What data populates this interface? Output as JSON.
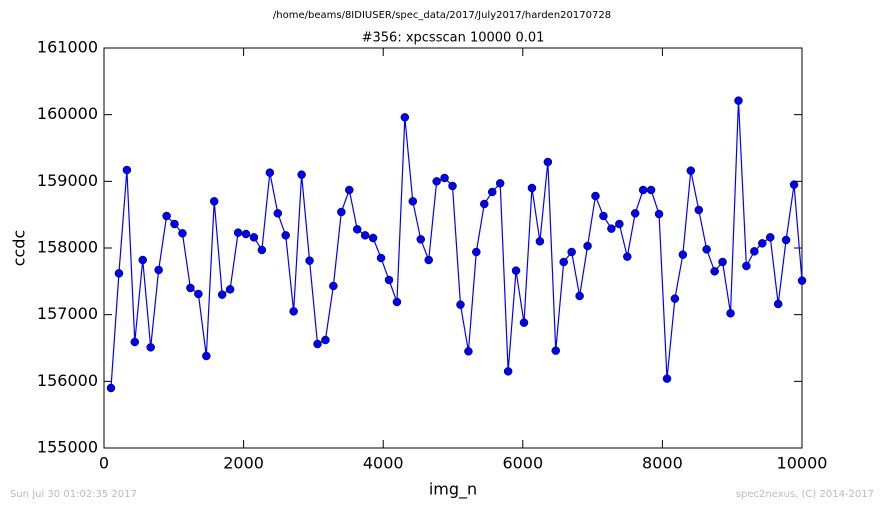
{
  "chart_data": {
    "type": "line",
    "suptitle": "/home/beams/8IDIUSER/spec_data/2017/July2017/harden20170728",
    "title": "#356: xpcsscan 10000 0.01",
    "xlabel": "img_n",
    "ylabel": "ccdc",
    "footer_left": "Sun Jul 30 01:02:35 2017",
    "footer_right": "spec2nexus, (C) 2014-2017",
    "x": [
      100,
      214,
      328,
      441,
      555,
      669,
      783,
      897,
      1010,
      1124,
      1238,
      1352,
      1466,
      1579,
      1693,
      1807,
      1921,
      2034,
      2148,
      2262,
      2376,
      2490,
      2603,
      2717,
      2831,
      2945,
      3059,
      3172,
      3286,
      3400,
      3514,
      3628,
      3741,
      3855,
      3969,
      4083,
      4197,
      4310,
      4424,
      4538,
      4652,
      4766,
      4879,
      4993,
      5107,
      5221,
      5334,
      5448,
      5562,
      5676,
      5790,
      5903,
      6017,
      6131,
      6245,
      6359,
      6472,
      6586,
      6700,
      6814,
      6928,
      7041,
      7155,
      7269,
      7383,
      7497,
      7610,
      7724,
      7838,
      7952,
      8066,
      8179,
      8293,
      8407,
      8521,
      8634,
      8748,
      8862,
      8976,
      9090,
      9203,
      9317,
      9431,
      9545,
      9659,
      9772,
      9886,
      10000
    ],
    "series": [
      {
        "name": "ccdc",
        "color": "#0000ff",
        "values": [
          155900,
          157620,
          159170,
          156590,
          157820,
          156510,
          157670,
          158480,
          158360,
          158220,
          157400,
          157310,
          156380,
          158700,
          157300,
          157380,
          158230,
          158210,
          158160,
          157970,
          159130,
          158520,
          158190,
          157050,
          159100,
          157810,
          156560,
          156620,
          157430,
          158540,
          158870,
          158280,
          158190,
          158150,
          157850,
          157520,
          157190,
          159960,
          158700,
          158130,
          157820,
          159000,
          159050,
          158930,
          157150,
          156450,
          157940,
          158660,
          158840,
          158970,
          156150,
          157660,
          156880,
          158900,
          158100,
          159290,
          156460,
          157790,
          157940,
          157280,
          158030,
          158780,
          158480,
          158290,
          158360,
          157870,
          158520,
          158870,
          158870,
          158510,
          156040,
          157240,
          157900,
          159160,
          158570,
          157980,
          157650,
          157790,
          157020,
          160210,
          157730,
          157950,
          158070,
          158160,
          157160,
          158120,
          158950,
          157510
        ]
      }
    ],
    "xlim": [
      0,
      10000
    ],
    "xticks": [
      0,
      2000,
      4000,
      6000,
      8000,
      10000
    ],
    "ylim": [
      155000,
      161000
    ],
    "yticks": [
      155000,
      156000,
      157000,
      158000,
      159000,
      160000,
      161000
    ],
    "grid": false
  }
}
